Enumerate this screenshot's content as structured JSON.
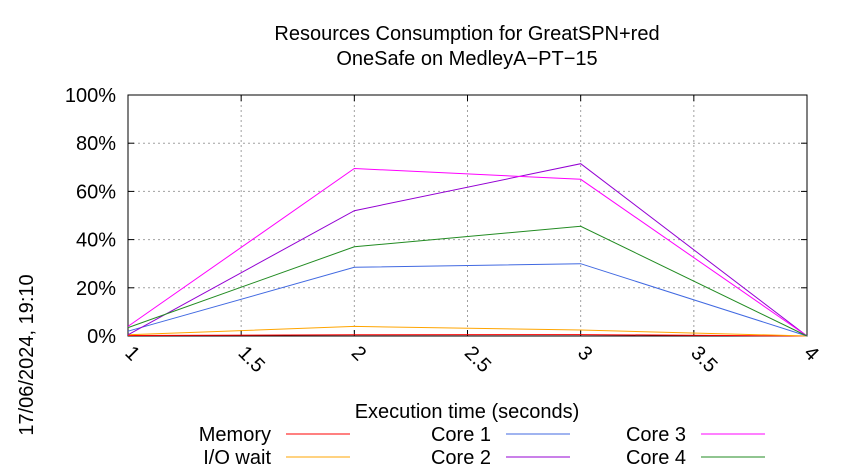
{
  "chart_data": {
    "type": "line",
    "title": "Resources Consumption for GreatSPN+red",
    "subtitle": "OneSafe on MedleyA−PT−15",
    "xlabel": "Execution time (seconds)",
    "ylabel": "",
    "side_label": "17/06/2024, 19:10",
    "x": [
      1,
      2,
      3,
      4
    ],
    "xlim": [
      1,
      4
    ],
    "ylim": [
      0,
      100
    ],
    "x_ticks": [
      "1",
      "1.5",
      "2",
      "2.5",
      "3",
      "3.5",
      "4"
    ],
    "x_tick_values": [
      1,
      1.5,
      2,
      2.5,
      3,
      3.5,
      4
    ],
    "y_ticks": [
      "0%",
      "20%",
      "40%",
      "60%",
      "80%",
      "100%"
    ],
    "y_tick_values": [
      0,
      20,
      40,
      60,
      80,
      100
    ],
    "grid": true,
    "legend_position": "bottom",
    "series": [
      {
        "name": "Memory",
        "color": "#ff0000",
        "values": [
          0.2,
          0.5,
          0.6,
          0
        ]
      },
      {
        "name": "I/O wait",
        "color": "#ffa500",
        "values": [
          0.5,
          4,
          2.5,
          0
        ]
      },
      {
        "name": "Core 1",
        "color": "#4169e1",
        "values": [
          2,
          28.5,
          30,
          0
        ]
      },
      {
        "name": "Core 2",
        "color": "#9400d3",
        "values": [
          0.5,
          52,
          71.5,
          0
        ]
      },
      {
        "name": "Core 3",
        "color": "#ff00ff",
        "values": [
          4,
          69.5,
          65,
          0
        ]
      },
      {
        "name": "Core 4",
        "color": "#228b22",
        "values": [
          3.5,
          37,
          45.5,
          0
        ]
      }
    ]
  }
}
